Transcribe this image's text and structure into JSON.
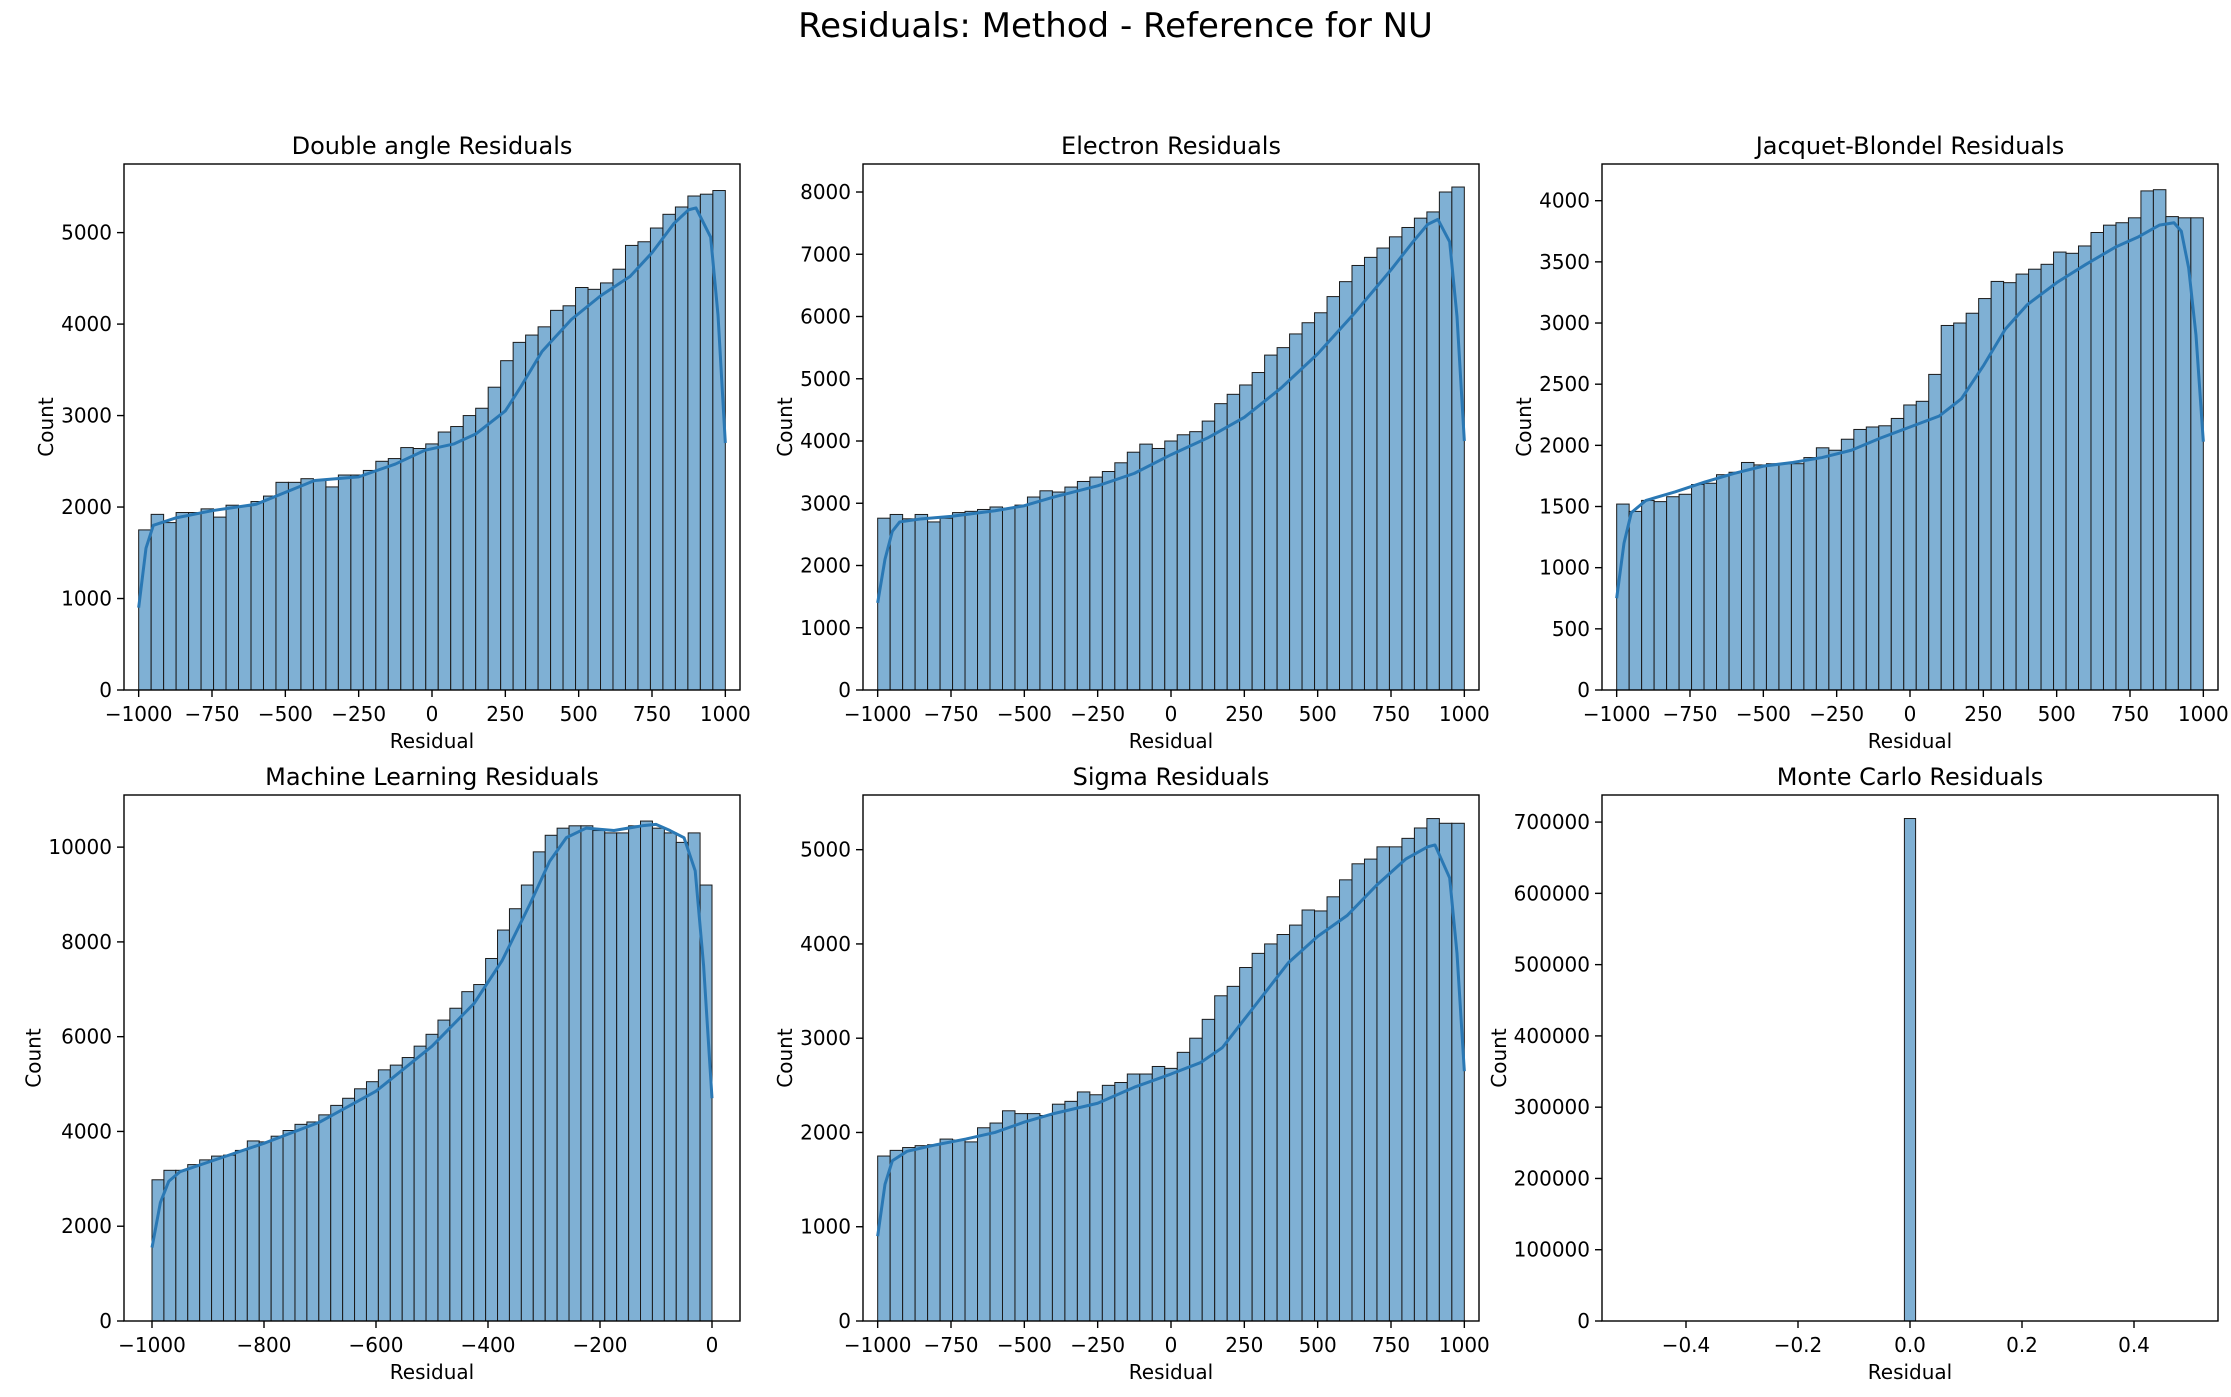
{
  "figure": {
    "suptitle": "Residuals: Method - Reference for NU",
    "bar_color": "#7fb0d4",
    "edge_color": "#1a1a1a",
    "kde_color": "#2a78b4"
  },
  "chart_data": [
    {
      "type": "bar",
      "title": "Double angle Residuals",
      "xlabel": "Residual",
      "ylabel": "Count",
      "xlim": [
        -1050,
        1050
      ],
      "ylim": [
        0,
        5750
      ],
      "xticks": [
        -1000,
        -750,
        -500,
        -250,
        0,
        250,
        500,
        750,
        1000
      ],
      "yticks": [
        0,
        1000,
        2000,
        3000,
        4000,
        5000
      ],
      "bin_range": [
        -1000,
        1000
      ],
      "values": [
        1750,
        1920,
        1830,
        1940,
        1940,
        1980,
        1890,
        2020,
        2010,
        2060,
        2120,
        2270,
        2270,
        2310,
        2290,
        2220,
        2350,
        2350,
        2400,
        2500,
        2530,
        2650,
        2640,
        2690,
        2820,
        2880,
        3000,
        3080,
        3310,
        3600,
        3800,
        3880,
        3970,
        4150,
        4200,
        4400,
        4380,
        4450,
        4600,
        4860,
        4900,
        5050,
        5200,
        5280,
        5400,
        5420,
        5460
      ],
      "kde": [
        [
          -1000,
          900
        ],
        [
          -975,
          1550
        ],
        [
          -950,
          1800
        ],
        [
          -875,
          1880
        ],
        [
          -750,
          1960
        ],
        [
          -600,
          2030
        ],
        [
          -500,
          2160
        ],
        [
          -400,
          2290
        ],
        [
          -250,
          2330
        ],
        [
          -125,
          2470
        ],
        [
          -25,
          2620
        ],
        [
          75,
          2690
        ],
        [
          150,
          2800
        ],
        [
          250,
          3050
        ],
        [
          300,
          3300
        ],
        [
          375,
          3700
        ],
        [
          475,
          4050
        ],
        [
          575,
          4310
        ],
        [
          675,
          4520
        ],
        [
          750,
          4780
        ],
        [
          825,
          5100
        ],
        [
          875,
          5250
        ],
        [
          900,
          5270
        ],
        [
          950,
          4950
        ],
        [
          975,
          4100
        ],
        [
          1000,
          2700
        ]
      ]
    },
    {
      "type": "bar",
      "title": "Electron Residuals",
      "xlabel": "Residual",
      "ylabel": "Count",
      "xlim": [
        -1050,
        1050
      ],
      "ylim": [
        0,
        8450
      ],
      "xticks": [
        -1000,
        -750,
        -500,
        -250,
        0,
        250,
        500,
        750,
        1000
      ],
      "yticks": [
        0,
        1000,
        2000,
        3000,
        4000,
        5000,
        6000,
        7000,
        8000
      ],
      "bin_range": [
        -1000,
        1000
      ],
      "values": [
        2760,
        2820,
        2750,
        2820,
        2700,
        2760,
        2850,
        2870,
        2900,
        2940,
        2920,
        2970,
        3100,
        3200,
        3180,
        3260,
        3350,
        3420,
        3510,
        3650,
        3820,
        3950,
        3880,
        4000,
        4100,
        4150,
        4320,
        4600,
        4750,
        4900,
        5100,
        5380,
        5500,
        5720,
        5900,
        6060,
        6320,
        6560,
        6820,
        6950,
        7100,
        7280,
        7430,
        7580,
        7680,
        8000,
        8080
      ],
      "kde": [
        [
          -1000,
          1400
        ],
        [
          -975,
          2100
        ],
        [
          -950,
          2550
        ],
        [
          -925,
          2700
        ],
        [
          -850,
          2750
        ],
        [
          -750,
          2790
        ],
        [
          -600,
          2880
        ],
        [
          -500,
          2960
        ],
        [
          -400,
          3100
        ],
        [
          -250,
          3280
        ],
        [
          -125,
          3480
        ],
        [
          0,
          3780
        ],
        [
          125,
          4050
        ],
        [
          250,
          4380
        ],
        [
          375,
          4850
        ],
        [
          500,
          5400
        ],
        [
          625,
          6050
        ],
        [
          750,
          6750
        ],
        [
          825,
          7200
        ],
        [
          875,
          7480
        ],
        [
          910,
          7560
        ],
        [
          950,
          7200
        ],
        [
          975,
          6000
        ],
        [
          1000,
          4000
        ]
      ]
    },
    {
      "type": "bar",
      "title": "Jacquet-Blondel Residuals",
      "xlabel": "Residual",
      "ylabel": "Count",
      "xlim": [
        -1050,
        1050
      ],
      "ylim": [
        0,
        4300
      ],
      "xticks": [
        -1000,
        -750,
        -500,
        -250,
        0,
        250,
        500,
        750,
        1000
      ],
      "yticks": [
        0,
        500,
        1000,
        1500,
        2000,
        2500,
        3000,
        3500,
        4000
      ],
      "bin_range": [
        -1000,
        1000
      ],
      "values": [
        1520,
        1460,
        1550,
        1540,
        1580,
        1600,
        1680,
        1690,
        1760,
        1780,
        1860,
        1840,
        1850,
        1850,
        1850,
        1900,
        1980,
        1960,
        2050,
        2130,
        2150,
        2160,
        2220,
        2330,
        2360,
        2580,
        2980,
        3000,
        3080,
        3200,
        3340,
        3330,
        3400,
        3440,
        3480,
        3580,
        3570,
        3630,
        3740,
        3800,
        3820,
        3860,
        4080,
        4090,
        3870,
        3860,
        3860
      ],
      "kde": [
        [
          -1000,
          750
        ],
        [
          -975,
          1200
        ],
        [
          -950,
          1450
        ],
        [
          -900,
          1550
        ],
        [
          -800,
          1620
        ],
        [
          -700,
          1700
        ],
        [
          -600,
          1770
        ],
        [
          -500,
          1830
        ],
        [
          -400,
          1860
        ],
        [
          -300,
          1900
        ],
        [
          -200,
          1960
        ],
        [
          -100,
          2060
        ],
        [
          0,
          2150
        ],
        [
          100,
          2240
        ],
        [
          175,
          2380
        ],
        [
          250,
          2650
        ],
        [
          325,
          2950
        ],
        [
          400,
          3150
        ],
        [
          500,
          3330
        ],
        [
          600,
          3480
        ],
        [
          700,
          3620
        ],
        [
          775,
          3700
        ],
        [
          850,
          3800
        ],
        [
          900,
          3820
        ],
        [
          925,
          3750
        ],
        [
          950,
          3450
        ],
        [
          975,
          2900
        ],
        [
          1000,
          2030
        ]
      ]
    },
    {
      "type": "bar",
      "title": "Machine Learning Residuals",
      "xlabel": "Residual",
      "ylabel": "Count",
      "xlim": [
        -1050,
        50
      ],
      "ylim": [
        0,
        11100
      ],
      "xticks": [
        -1000,
        -800,
        -600,
        -400,
        -200,
        0
      ],
      "yticks": [
        0,
        2000,
        4000,
        6000,
        8000,
        10000
      ],
      "bin_range": [
        -1000,
        0
      ],
      "values": [
        2980,
        3180,
        3180,
        3300,
        3400,
        3480,
        3500,
        3600,
        3800,
        3780,
        3900,
        4020,
        4150,
        4200,
        4350,
        4550,
        4700,
        4900,
        5050,
        5300,
        5400,
        5560,
        5800,
        6050,
        6350,
        6600,
        6950,
        7100,
        7650,
        8250,
        8700,
        9200,
        9900,
        10250,
        10400,
        10450,
        10450,
        10350,
        10300,
        10300,
        10450,
        10550,
        10400,
        10300,
        10100,
        10300,
        9200
      ],
      "kde": [
        [
          -1000,
          1550
        ],
        [
          -985,
          2500
        ],
        [
          -970,
          2950
        ],
        [
          -950,
          3150
        ],
        [
          -900,
          3350
        ],
        [
          -800,
          3750
        ],
        [
          -700,
          4200
        ],
        [
          -600,
          4850
        ],
        [
          -500,
          5800
        ],
        [
          -425,
          6700
        ],
        [
          -375,
          7600
        ],
        [
          -325,
          8800
        ],
        [
          -290,
          9700
        ],
        [
          -260,
          10200
        ],
        [
          -225,
          10400
        ],
        [
          -175,
          10350
        ],
        [
          -125,
          10450
        ],
        [
          -100,
          10480
        ],
        [
          -75,
          10350
        ],
        [
          -50,
          10200
        ],
        [
          -30,
          9500
        ],
        [
          -15,
          7500
        ],
        [
          0,
          4700
        ]
      ]
    },
    {
      "type": "bar",
      "title": "Sigma Residuals",
      "xlabel": "Residual",
      "ylabel": "Count",
      "xlim": [
        -1050,
        1050
      ],
      "ylim": [
        0,
        5580
      ],
      "xticks": [
        -1000,
        -750,
        -500,
        -250,
        0,
        250,
        500,
        750,
        1000
      ],
      "yticks": [
        0,
        1000,
        2000,
        3000,
        4000,
        5000
      ],
      "bin_range": [
        -1000,
        1000
      ],
      "values": [
        1750,
        1810,
        1840,
        1860,
        1870,
        1930,
        1920,
        1900,
        2050,
        2100,
        2230,
        2200,
        2200,
        2180,
        2300,
        2330,
        2430,
        2400,
        2500,
        2530,
        2620,
        2620,
        2700,
        2680,
        2850,
        3000,
        3200,
        3450,
        3550,
        3750,
        3900,
        4000,
        4100,
        4200,
        4360,
        4350,
        4500,
        4680,
        4850,
        4900,
        5030,
        5030,
        5120,
        5230,
        5330,
        5280,
        5280
      ],
      "kde": [
        [
          -1000,
          900
        ],
        [
          -975,
          1450
        ],
        [
          -950,
          1700
        ],
        [
          -900,
          1800
        ],
        [
          -800,
          1870
        ],
        [
          -700,
          1930
        ],
        [
          -600,
          2000
        ],
        [
          -500,
          2110
        ],
        [
          -400,
          2200
        ],
        [
          -250,
          2310
        ],
        [
          -125,
          2480
        ],
        [
          0,
          2620
        ],
        [
          100,
          2740
        ],
        [
          175,
          2900
        ],
        [
          250,
          3200
        ],
        [
          325,
          3500
        ],
        [
          400,
          3800
        ],
        [
          500,
          4080
        ],
        [
          600,
          4300
        ],
        [
          700,
          4620
        ],
        [
          800,
          4900
        ],
        [
          875,
          5030
        ],
        [
          900,
          5050
        ],
        [
          950,
          4700
        ],
        [
          975,
          3900
        ],
        [
          1000,
          2650
        ]
      ]
    },
    {
      "type": "bar",
      "title": "Monte Carlo Residuals",
      "xlabel": "Residual",
      "ylabel": "Count",
      "xlim": [
        -0.55,
        0.55
      ],
      "ylim": [
        0,
        738000
      ],
      "xticks": [
        -0.4,
        -0.2,
        0.0,
        0.2,
        0.4
      ],
      "xtick_labels": [
        "−0.4",
        "−0.2",
        "0.0",
        "0.2",
        "0.4"
      ],
      "yticks": [
        0,
        100000,
        200000,
        300000,
        400000,
        500000,
        600000,
        700000
      ],
      "bin_range": [
        -0.01,
        0.01
      ],
      "values": [
        705000
      ],
      "kde": []
    }
  ]
}
